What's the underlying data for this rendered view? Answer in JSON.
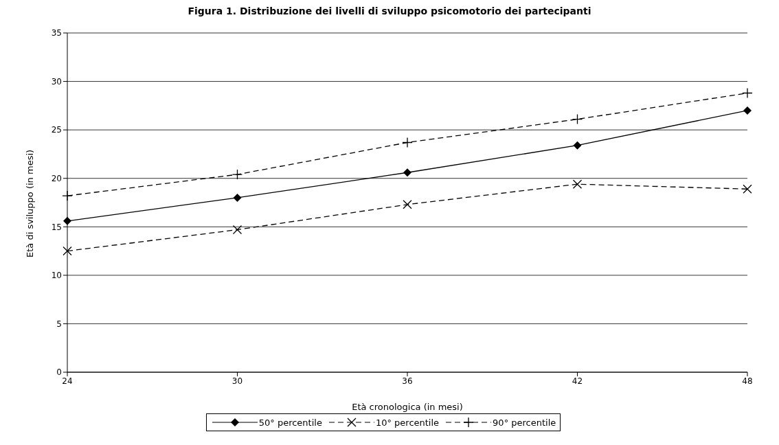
{
  "chart_data": {
    "type": "line",
    "title": "Figura 1. Distribuzione dei livelli di sviluppo psicomotorio dei partecipanti",
    "xlabel": "Età cronologica (in mesi)",
    "ylabel": "Età di sviluppo (in mesi)",
    "categories": [
      "24",
      "30",
      "36",
      "42",
      "48"
    ],
    "ylim": [
      0,
      35
    ],
    "yticks": [
      0,
      5,
      10,
      15,
      20,
      25,
      30,
      35
    ],
    "grid": "y",
    "legend": "bottom",
    "series": [
      {
        "name": "50° percentile",
        "color": "#000000",
        "marker": "diamond",
        "line_style": "solid",
        "values": [
          15.6,
          18.0,
          20.6,
          23.4,
          27.0
        ]
      },
      {
        "name": "10° percentile",
        "color": "#000000",
        "marker": "x",
        "line_style": "dashed",
        "values": [
          12.5,
          14.7,
          17.3,
          19.4,
          18.9
        ]
      },
      {
        "name": "90° percentile",
        "color": "#000000",
        "marker": "cross",
        "line_style": "dashed",
        "values": [
          18.2,
          20.4,
          23.7,
          26.1,
          28.8
        ]
      }
    ]
  }
}
